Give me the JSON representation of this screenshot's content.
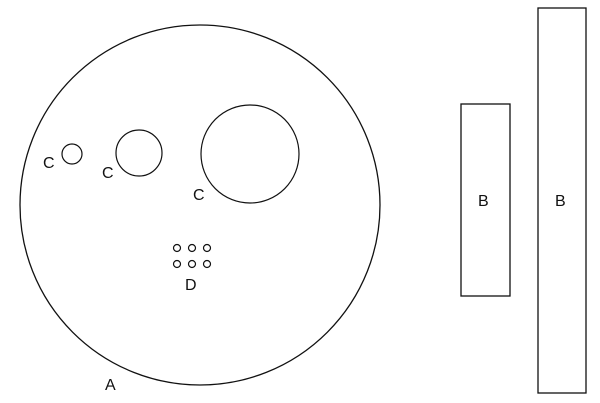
{
  "labels": {
    "disc": "A",
    "strip_short": "B",
    "strip_long": "B",
    "hole_small": "C",
    "hole_medium": "C",
    "hole_large": "C",
    "pinholes": "D"
  },
  "pinhole_grid": {
    "rows": 2,
    "cols": 3
  }
}
